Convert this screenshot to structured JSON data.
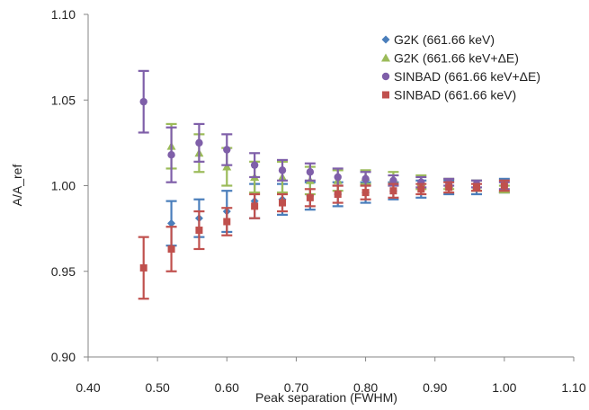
{
  "chart_data": {
    "type": "scatter",
    "title": "",
    "xlabel": "Peak separation (FWHM)",
    "ylabel": "A/A_ref",
    "xlim": [
      0.4,
      1.1
    ],
    "ylim": [
      0.9,
      1.1
    ],
    "x_ticks": [
      "0.40",
      "0.50",
      "0.60",
      "0.70",
      "0.80",
      "0.90",
      "1.00",
      "1.10"
    ],
    "y_ticks": [
      "0.90",
      "0.95",
      "1.00",
      "1.05",
      "1.10"
    ],
    "grid": false,
    "legend_position": "top-right",
    "x": [
      0.48,
      0.52,
      0.56,
      0.6,
      0.64,
      0.68,
      0.72,
      0.76,
      0.8,
      0.84,
      0.88,
      0.92,
      0.96,
      1.0
    ],
    "series": [
      {
        "name": "G2K (661.66 keV)",
        "marker": "diamond",
        "color": "#4a7ebb",
        "values": [
          null,
          0.978,
          0.981,
          0.985,
          0.991,
          0.992,
          0.994,
          0.995,
          0.996,
          0.997,
          0.998,
          0.999,
          0.999,
          1.0
        ],
        "errors": [
          null,
          0.013,
          0.011,
          0.012,
          0.01,
          0.009,
          0.008,
          0.007,
          0.006,
          0.005,
          0.005,
          0.004,
          0.004,
          0.004
        ]
      },
      {
        "name": "G2K (661.66 keV+ΔE)",
        "marker": "triangle",
        "color": "#9bbb59",
        "values": [
          null,
          1.023,
          1.019,
          1.011,
          1.005,
          1.005,
          1.003,
          1.003,
          1.005,
          1.004,
          1.002,
          1.001,
          1.0,
          0.998
        ],
        "errors": [
          null,
          0.013,
          0.011,
          0.011,
          0.009,
          0.009,
          0.008,
          0.006,
          0.004,
          0.004,
          0.004,
          0.003,
          0.003,
          0.002
        ]
      },
      {
        "name": "SINBAD (661.66 keV+ΔE)",
        "marker": "circle",
        "color": "#7f5fa9",
        "values": [
          1.049,
          1.018,
          1.025,
          1.021,
          1.012,
          1.009,
          1.008,
          1.005,
          1.004,
          1.003,
          1.002,
          1.002,
          1.001,
          1.0
        ],
        "errors": [
          0.018,
          0.016,
          0.011,
          0.009,
          0.007,
          0.006,
          0.005,
          0.005,
          0.004,
          0.003,
          0.003,
          0.002,
          0.002,
          0.002
        ]
      },
      {
        "name": "SINBAD (661.66 keV)",
        "marker": "square",
        "color": "#c0504d",
        "values": [
          0.952,
          0.963,
          0.974,
          0.979,
          0.988,
          0.99,
          0.993,
          0.995,
          0.996,
          0.997,
          0.998,
          0.999,
          0.999,
          1.0
        ],
        "errors": [
          0.018,
          0.013,
          0.011,
          0.008,
          0.007,
          0.005,
          0.005,
          0.005,
          0.004,
          0.004,
          0.003,
          0.003,
          0.002,
          0.003
        ]
      }
    ]
  }
}
